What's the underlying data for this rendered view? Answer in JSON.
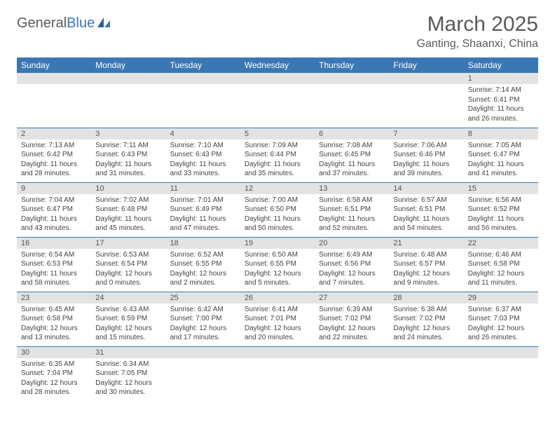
{
  "logo": {
    "text1": "General",
    "text2": "Blue"
  },
  "header": {
    "month_title": "March 2025",
    "location": "Ganting, Shaanxi, China"
  },
  "colors": {
    "header_bg": "#3a78b5",
    "header_text": "#ffffff",
    "daynum_bg": "#e3e3e3",
    "row_border": "#3a78b5",
    "body_text": "#444444",
    "title_text": "#5a5a5a"
  },
  "weekdays": [
    "Sunday",
    "Monday",
    "Tuesday",
    "Wednesday",
    "Thursday",
    "Friday",
    "Saturday"
  ],
  "weeks": [
    [
      null,
      null,
      null,
      null,
      null,
      null,
      {
        "n": "1",
        "sunrise": "Sunrise: 7:14 AM",
        "sunset": "Sunset: 6:41 PM",
        "daylight": "Daylight: 11 hours and 26 minutes."
      }
    ],
    [
      {
        "n": "2",
        "sunrise": "Sunrise: 7:13 AM",
        "sunset": "Sunset: 6:42 PM",
        "daylight": "Daylight: 11 hours and 28 minutes."
      },
      {
        "n": "3",
        "sunrise": "Sunrise: 7:11 AM",
        "sunset": "Sunset: 6:43 PM",
        "daylight": "Daylight: 11 hours and 31 minutes."
      },
      {
        "n": "4",
        "sunrise": "Sunrise: 7:10 AM",
        "sunset": "Sunset: 6:43 PM",
        "daylight": "Daylight: 11 hours and 33 minutes."
      },
      {
        "n": "5",
        "sunrise": "Sunrise: 7:09 AM",
        "sunset": "Sunset: 6:44 PM",
        "daylight": "Daylight: 11 hours and 35 minutes."
      },
      {
        "n": "6",
        "sunrise": "Sunrise: 7:08 AM",
        "sunset": "Sunset: 6:45 PM",
        "daylight": "Daylight: 11 hours and 37 minutes."
      },
      {
        "n": "7",
        "sunrise": "Sunrise: 7:06 AM",
        "sunset": "Sunset: 6:46 PM",
        "daylight": "Daylight: 11 hours and 39 minutes."
      },
      {
        "n": "8",
        "sunrise": "Sunrise: 7:05 AM",
        "sunset": "Sunset: 6:47 PM",
        "daylight": "Daylight: 11 hours and 41 minutes."
      }
    ],
    [
      {
        "n": "9",
        "sunrise": "Sunrise: 7:04 AM",
        "sunset": "Sunset: 6:47 PM",
        "daylight": "Daylight: 11 hours and 43 minutes."
      },
      {
        "n": "10",
        "sunrise": "Sunrise: 7:02 AM",
        "sunset": "Sunset: 6:48 PM",
        "daylight": "Daylight: 11 hours and 45 minutes."
      },
      {
        "n": "11",
        "sunrise": "Sunrise: 7:01 AM",
        "sunset": "Sunset: 6:49 PM",
        "daylight": "Daylight: 11 hours and 47 minutes."
      },
      {
        "n": "12",
        "sunrise": "Sunrise: 7:00 AM",
        "sunset": "Sunset: 6:50 PM",
        "daylight": "Daylight: 11 hours and 50 minutes."
      },
      {
        "n": "13",
        "sunrise": "Sunrise: 6:58 AM",
        "sunset": "Sunset: 6:51 PM",
        "daylight": "Daylight: 11 hours and 52 minutes."
      },
      {
        "n": "14",
        "sunrise": "Sunrise: 6:57 AM",
        "sunset": "Sunset: 6:51 PM",
        "daylight": "Daylight: 11 hours and 54 minutes."
      },
      {
        "n": "15",
        "sunrise": "Sunrise: 6:56 AM",
        "sunset": "Sunset: 6:52 PM",
        "daylight": "Daylight: 11 hours and 56 minutes."
      }
    ],
    [
      {
        "n": "16",
        "sunrise": "Sunrise: 6:54 AM",
        "sunset": "Sunset: 6:53 PM",
        "daylight": "Daylight: 11 hours and 58 minutes."
      },
      {
        "n": "17",
        "sunrise": "Sunrise: 6:53 AM",
        "sunset": "Sunset: 6:54 PM",
        "daylight": "Daylight: 12 hours and 0 minutes."
      },
      {
        "n": "18",
        "sunrise": "Sunrise: 6:52 AM",
        "sunset": "Sunset: 6:55 PM",
        "daylight": "Daylight: 12 hours and 2 minutes."
      },
      {
        "n": "19",
        "sunrise": "Sunrise: 6:50 AM",
        "sunset": "Sunset: 6:55 PM",
        "daylight": "Daylight: 12 hours and 5 minutes."
      },
      {
        "n": "20",
        "sunrise": "Sunrise: 6:49 AM",
        "sunset": "Sunset: 6:56 PM",
        "daylight": "Daylight: 12 hours and 7 minutes."
      },
      {
        "n": "21",
        "sunrise": "Sunrise: 6:48 AM",
        "sunset": "Sunset: 6:57 PM",
        "daylight": "Daylight: 12 hours and 9 minutes."
      },
      {
        "n": "22",
        "sunrise": "Sunrise: 6:46 AM",
        "sunset": "Sunset: 6:58 PM",
        "daylight": "Daylight: 12 hours and 11 minutes."
      }
    ],
    [
      {
        "n": "23",
        "sunrise": "Sunrise: 6:45 AM",
        "sunset": "Sunset: 6:58 PM",
        "daylight": "Daylight: 12 hours and 13 minutes."
      },
      {
        "n": "24",
        "sunrise": "Sunrise: 6:43 AM",
        "sunset": "Sunset: 6:59 PM",
        "daylight": "Daylight: 12 hours and 15 minutes."
      },
      {
        "n": "25",
        "sunrise": "Sunrise: 6:42 AM",
        "sunset": "Sunset: 7:00 PM",
        "daylight": "Daylight: 12 hours and 17 minutes."
      },
      {
        "n": "26",
        "sunrise": "Sunrise: 6:41 AM",
        "sunset": "Sunset: 7:01 PM",
        "daylight": "Daylight: 12 hours and 20 minutes."
      },
      {
        "n": "27",
        "sunrise": "Sunrise: 6:39 AM",
        "sunset": "Sunset: 7:02 PM",
        "daylight": "Daylight: 12 hours and 22 minutes."
      },
      {
        "n": "28",
        "sunrise": "Sunrise: 6:38 AM",
        "sunset": "Sunset: 7:02 PM",
        "daylight": "Daylight: 12 hours and 24 minutes."
      },
      {
        "n": "29",
        "sunrise": "Sunrise: 6:37 AM",
        "sunset": "Sunset: 7:03 PM",
        "daylight": "Daylight: 12 hours and 26 minutes."
      }
    ],
    [
      {
        "n": "30",
        "sunrise": "Sunrise: 6:35 AM",
        "sunset": "Sunset: 7:04 PM",
        "daylight": "Daylight: 12 hours and 28 minutes."
      },
      {
        "n": "31",
        "sunrise": "Sunrise: 6:34 AM",
        "sunset": "Sunset: 7:05 PM",
        "daylight": "Daylight: 12 hours and 30 minutes."
      },
      null,
      null,
      null,
      null,
      null
    ]
  ]
}
